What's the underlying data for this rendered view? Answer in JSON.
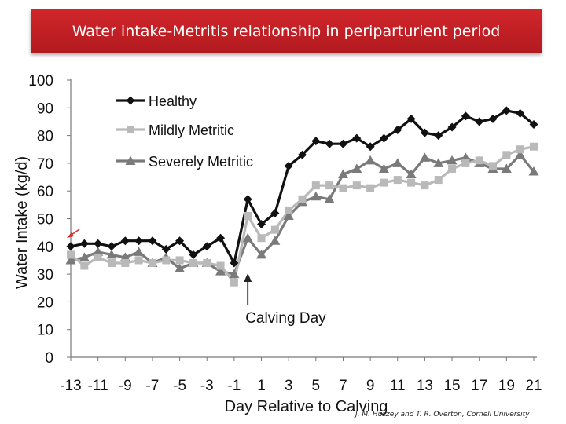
{
  "title": "Water intake-Metritis relationship in periparturient period",
  "credit": "J. M. Huzzey and T. R. Overton, Cornell University",
  "chart_data": {
    "type": "line",
    "xlabel": "Day Relative to Calving",
    "ylabel": "Water Intake (kg/d)",
    "xlim": [
      -13,
      21
    ],
    "ylim": [
      0,
      100
    ],
    "yticks": [
      0,
      10,
      20,
      30,
      40,
      50,
      60,
      70,
      80,
      90,
      100
    ],
    "xticks": [
      -13,
      -11,
      -9,
      -7,
      -5,
      -3,
      -1,
      1,
      3,
      5,
      7,
      9,
      11,
      13,
      15,
      17,
      19,
      21
    ],
    "x": [
      -13,
      -12,
      -11,
      -10,
      -9,
      -8,
      -7,
      -6,
      -5,
      -4,
      -3,
      -2,
      -1,
      0,
      1,
      2,
      3,
      4,
      5,
      6,
      7,
      8,
      9,
      10,
      11,
      12,
      13,
      14,
      15,
      16,
      17,
      18,
      19,
      20,
      21
    ],
    "legend_position": "top-left",
    "annotation": {
      "text": "Calving Day",
      "x": 0
    },
    "series": [
      {
        "name": "Healthy",
        "color": "#111111",
        "marker": "diamond",
        "values": [
          40,
          41,
          41,
          40,
          42,
          42,
          42,
          39,
          42,
          37,
          40,
          43,
          34,
          57,
          48,
          52,
          69,
          73,
          78,
          77,
          77,
          79,
          76,
          79,
          82,
          86,
          81,
          80,
          83,
          87,
          85,
          86,
          89,
          88,
          84
        ]
      },
      {
        "name": "Mildly Metritic",
        "color": "#b9b9b9",
        "marker": "square",
        "values": [
          37,
          33,
          36,
          34,
          34,
          35,
          34,
          35,
          35,
          34,
          34,
          33,
          27,
          51,
          43,
          46,
          53,
          57,
          62,
          62,
          61,
          62,
          61,
          63,
          64,
          63,
          62,
          64,
          68,
          70,
          71,
          69,
          73,
          75,
          76
        ]
      },
      {
        "name": "Severely Metritic",
        "color": "#7a7a7a",
        "marker": "triangle",
        "values": [
          35,
          36,
          38,
          37,
          36,
          38,
          34,
          36,
          32,
          34,
          34,
          31,
          30,
          43,
          37,
          42,
          51,
          56,
          58,
          57,
          66,
          68,
          71,
          68,
          70,
          66,
          72,
          70,
          71,
          72,
          70,
          68,
          68,
          73,
          67
        ]
      }
    ]
  }
}
